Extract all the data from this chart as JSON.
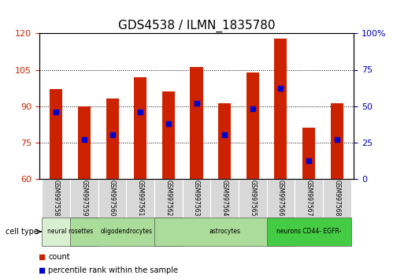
{
  "title": "GDS4538 / ILMN_1835780",
  "samples": [
    "GSM997558",
    "GSM997559",
    "GSM997560",
    "GSM997561",
    "GSM997562",
    "GSM997563",
    "GSM997564",
    "GSM997565",
    "GSM997566",
    "GSM997567",
    "GSM997568"
  ],
  "count_values": [
    97,
    90,
    93,
    102,
    96,
    106,
    91,
    104,
    118,
    81,
    91
  ],
  "percentile_values": [
    46,
    27,
    30,
    46,
    38,
    52,
    30,
    48,
    62,
    12,
    27
  ],
  "ylim_left": [
    60,
    120
  ],
  "ylim_right": [
    0,
    100
  ],
  "yticks_left": [
    60,
    75,
    90,
    105,
    120
  ],
  "yticks_right": [
    0,
    25,
    50,
    75,
    100
  ],
  "groups": [
    {
      "label": "neural rosettes",
      "start": 0,
      "end": 1,
      "color": "#d8f0d0"
    },
    {
      "label": "oligodendrocytes",
      "start": 1,
      "end": 4,
      "color": "#aadd99"
    },
    {
      "label": "astrocytes",
      "start": 4,
      "end": 8,
      "color": "#aadd99"
    },
    {
      "label": "neurons CD44- EGFR-",
      "start": 8,
      "end": 10,
      "color": "#44cc44"
    }
  ],
  "bar_color": "#cc2200",
  "percentile_color": "#0000cc",
  "bar_width": 0.45,
  "left_tick_color": "#cc2200",
  "right_tick_color": "#0000bb",
  "sample_box_color": "#d8d8d8"
}
